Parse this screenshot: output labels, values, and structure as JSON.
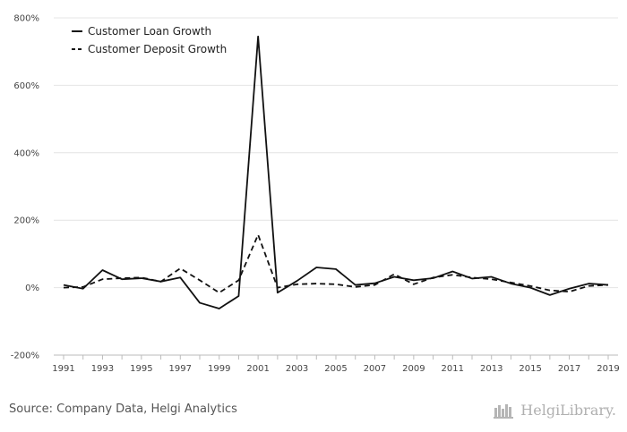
{
  "chart_data": {
    "type": "line",
    "x": [
      1991,
      1992,
      1993,
      1994,
      1995,
      1996,
      1997,
      1998,
      1999,
      2000,
      2001,
      2002,
      2003,
      2004,
      2005,
      2006,
      2007,
      2008,
      2009,
      2010,
      2011,
      2012,
      2013,
      2014,
      2015,
      2016,
      2017,
      2018,
      2019
    ],
    "x_tick_labels": [
      "1991",
      "1993",
      "1995",
      "1997",
      "1999",
      "2001",
      "2003",
      "2005",
      "2007",
      "2009",
      "2011",
      "2013",
      "2015",
      "2017",
      "2019"
    ],
    "y_tick_labels": [
      "800%",
      "600%",
      "400%",
      "200%",
      "0%",
      "-200%"
    ],
    "y_ticks": [
      800,
      600,
      400,
      200,
      0,
      -200
    ],
    "ylim": [
      -200,
      800
    ],
    "grid": "horizontal",
    "legend_position": "top-left",
    "series": [
      {
        "name": "Customer Loan Growth",
        "style": "solid",
        "color": "#111111",
        "values": [
          8,
          -3,
          52,
          25,
          28,
          18,
          30,
          -45,
          -62,
          -25,
          745,
          -15,
          20,
          60,
          55,
          8,
          13,
          32,
          22,
          28,
          48,
          27,
          32,
          12,
          0,
          -22,
          -3,
          12,
          8
        ]
      },
      {
        "name": "Customer Deposit Growth",
        "style": "dashed",
        "color": "#111111",
        "values": [
          0,
          2,
          25,
          28,
          30,
          18,
          57,
          22,
          -15,
          22,
          157,
          0,
          10,
          12,
          10,
          2,
          8,
          40,
          10,
          30,
          38,
          30,
          25,
          15,
          5,
          -8,
          -12,
          5,
          8
        ]
      }
    ]
  },
  "footer": {
    "source": "Source: Company Data, Helgi Analytics",
    "brand": "HelgiLibrary."
  }
}
